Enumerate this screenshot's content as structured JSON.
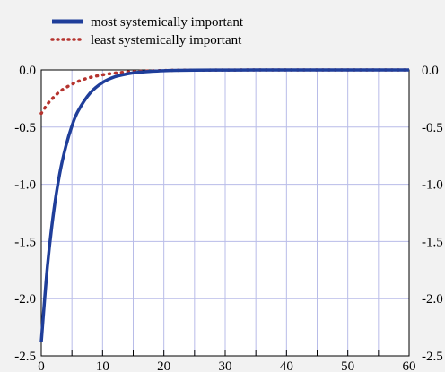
{
  "chart_data": {
    "type": "line",
    "title": "",
    "xlabel": "",
    "ylabel": "",
    "xlim": [
      0,
      60
    ],
    "ylim": [
      -2.5,
      0.0
    ],
    "x_ticks": [
      0,
      10,
      20,
      30,
      40,
      50,
      60
    ],
    "x_tick_labels": [
      "0",
      "10",
      "20",
      "30",
      "40",
      "50",
      "60"
    ],
    "y_ticks": [
      0.0,
      -0.5,
      -1.0,
      -1.5,
      -2.0,
      -2.5
    ],
    "y_tick_labels": [
      "0.0",
      "-0.5",
      "-1.0",
      "-1.5",
      "-2.0",
      "-2.5"
    ],
    "grid": true,
    "legend_placement": "top-left",
    "x": [
      0,
      1,
      2,
      3,
      4,
      5,
      6,
      8,
      10,
      12,
      14,
      16,
      18,
      20,
      22,
      25,
      30,
      35,
      40,
      45,
      50,
      55,
      60
    ],
    "series": [
      {
        "name": "most systemically important",
        "color": "#1f3e9a",
        "style": "solid",
        "values": [
          -2.38,
          -1.72,
          -1.25,
          -0.91,
          -0.67,
          -0.49,
          -0.36,
          -0.2,
          -0.11,
          -0.06,
          -0.035,
          -0.02,
          -0.012,
          -0.007,
          -0.004,
          -0.002,
          -0.001,
          0,
          0,
          0,
          0,
          0,
          0
        ]
      },
      {
        "name": "least systemically important",
        "color": "#b5332e",
        "style": "dotted",
        "values": [
          -0.38,
          -0.3,
          -0.24,
          -0.19,
          -0.155,
          -0.125,
          -0.1,
          -0.065,
          -0.043,
          -0.028,
          -0.018,
          -0.012,
          -0.008,
          -0.005,
          -0.003,
          -0.002,
          -0.001,
          0,
          0,
          0,
          0,
          0,
          0
        ]
      }
    ]
  }
}
